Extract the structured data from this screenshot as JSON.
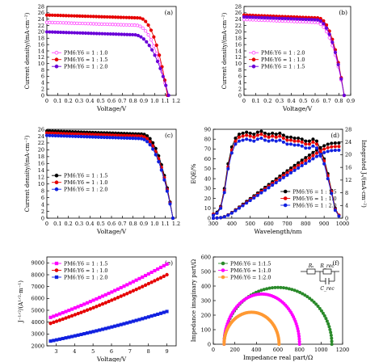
{
  "figure": {
    "title": ""
  },
  "chart_data": [
    {
      "id": "a",
      "type": "line",
      "panel_label": "(a)",
      "xlabel": "Voltage/V",
      "ylabel": "Current density/(mA·cm⁻²)",
      "xlim": [
        0,
        1.2
      ],
      "ylim": [
        0,
        28
      ],
      "xticks": [
        "0",
        "0.1",
        "0.2",
        "0.3",
        "0.4",
        "0.5",
        "0.6",
        "0.7",
        "0.8",
        "0.9",
        "1.0",
        "1.1",
        "1.2"
      ],
      "yticks": [
        "0",
        "2",
        "4",
        "6",
        "8",
        "10",
        "12",
        "14",
        "16",
        "18",
        "20",
        "22",
        "24",
        "26",
        "28"
      ],
      "legend": "left",
      "series": [
        {
          "name": "PM6:Y6 = 1 : 1.0",
          "color": "#ff44ff",
          "marker": "circle-open",
          "jsc": 23.0,
          "voc": 1.12,
          "knee": 0.82
        },
        {
          "name": "PM6:Y6 = 1 : 1.5",
          "color": "#e60000",
          "marker": "circle",
          "jsc": 25.3,
          "voc": 1.12,
          "knee": 0.85
        },
        {
          "name": "PM6:Y6 = 1 : 2.0",
          "color": "#6a00d8",
          "marker": "circle",
          "jsc": 20.0,
          "voc": 1.13,
          "knee": 0.8
        }
      ]
    },
    {
      "id": "b",
      "type": "line",
      "panel_label": "(b)",
      "xlabel": "Voltage/V",
      "ylabel": "Current density/(mA·cm⁻²)",
      "xlim": [
        0,
        0.9
      ],
      "ylim": [
        0,
        28
      ],
      "xticks": [
        "0",
        "0.1",
        "0.2",
        "0.3",
        "0.4",
        "0.5",
        "0.6",
        "0.7",
        "0.8",
        "0.9"
      ],
      "yticks": [
        "0",
        "2",
        "4",
        "6",
        "8",
        "10",
        "12",
        "14",
        "16",
        "18",
        "20",
        "22",
        "24",
        "26",
        "28"
      ],
      "legend": "left",
      "series": [
        {
          "name": "PM6:Y6 = 1 : 2.0",
          "color": "#ff44ff",
          "marker": "circle-open",
          "jsc": 23.9,
          "voc": 0.845,
          "knee": 0.6
        },
        {
          "name": "PM6:Y6 = 1 : 1.0",
          "color": "#e60000",
          "marker": "circle",
          "jsc": 25.3,
          "voc": 0.845,
          "knee": 0.62
        },
        {
          "name": "PM6:Y6 = 1 : 1.5",
          "color": "#6a00d8",
          "marker": "circle",
          "jsc": 24.7,
          "voc": 0.845,
          "knee": 0.61
        }
      ]
    },
    {
      "id": "c",
      "type": "line",
      "panel_label": "(c)",
      "xlabel": "Voltage/V",
      "ylabel": "Current density/(mA·cm⁻²)",
      "xlim": [
        0,
        1.2
      ],
      "ylim": [
        0,
        26
      ],
      "xticks": [
        "0",
        "0.1",
        "0.2",
        "0.3",
        "0.4",
        "0.5",
        "0.6",
        "0.7",
        "0.8",
        "0.9",
        "1.0",
        "1.1",
        "1.2"
      ],
      "yticks": [
        "0",
        "2",
        "4",
        "6",
        "8",
        "10",
        "12",
        "14",
        "16",
        "18",
        "20",
        "22",
        "24",
        "26"
      ],
      "legend": "left",
      "series": [
        {
          "name": "PM6:Y6 = 1 : 1.5",
          "color": "#000000",
          "marker": "circle",
          "jsc": 25.5,
          "voc": 1.17,
          "knee": 0.88
        },
        {
          "name": "PM6:Y6 = 1 : 1.0",
          "color": "#e60000",
          "marker": "circle",
          "jsc": 24.9,
          "voc": 1.17,
          "knee": 0.87
        },
        {
          "name": "PM6:Y6 = 1 : 2.0",
          "color": "#1020e0",
          "marker": "circle",
          "jsc": 24.2,
          "voc": 1.17,
          "knee": 0.86
        }
      ]
    },
    {
      "id": "d",
      "type": "line",
      "panel_label": "(d)",
      "xlabel": "Wavelength/nm",
      "ylabel": "EQE/%",
      "ylabel_right": "Integrated Jₛ/(mA·cm⁻²)",
      "xlim": [
        300,
        1000
      ],
      "ylim": [
        0,
        90
      ],
      "ylim_right": [
        0,
        28
      ],
      "xticks": [
        "300",
        "400",
        "500",
        "600",
        "700",
        "800",
        "900",
        "1000"
      ],
      "yticks": [
        "0",
        "10",
        "20",
        "30",
        "40",
        "50",
        "60",
        "70",
        "80",
        "90"
      ],
      "yticks_right": [
        "0",
        "4",
        "8",
        "12",
        "16",
        "20",
        "24",
        "28"
      ],
      "legend": "bottom-right",
      "eqe_x": [
        300,
        320,
        340,
        360,
        380,
        400,
        420,
        440,
        460,
        480,
        500,
        520,
        540,
        560,
        580,
        600,
        620,
        640,
        660,
        680,
        700,
        720,
        740,
        760,
        780,
        800,
        820,
        840,
        860,
        880,
        900,
        920,
        940,
        960,
        980
      ],
      "series": [
        {
          "name": "PM6:Y6 = 1 : 1.5",
          "color": "#000000",
          "eqe": [
            4,
            6,
            12,
            30,
            55,
            72,
            81,
            85,
            86,
            87,
            86,
            85,
            87,
            88,
            86,
            85,
            86,
            85,
            86,
            84,
            82,
            82,
            81,
            81,
            80,
            78,
            78,
            80,
            78,
            70,
            60,
            45,
            28,
            10,
            3
          ],
          "jint": 23.7
        },
        {
          "name": "PM6:Y6 = 1 : 1.0",
          "color": "#e60000",
          "eqe": [
            4,
            5,
            11,
            28,
            52,
            69,
            78,
            82,
            83,
            84,
            83,
            82,
            84,
            85,
            83,
            82,
            83,
            82,
            83,
            81,
            79,
            79,
            78,
            78,
            77,
            75,
            75,
            77,
            75,
            67,
            58,
            43,
            27,
            9,
            3
          ],
          "jint": 22.6
        },
        {
          "name": "PM6:Y6 = 1 : 2.0",
          "color": "#1020e0",
          "eqe": [
            3,
            5,
            10,
            26,
            50,
            66,
            75,
            78,
            79,
            80,
            79,
            78,
            80,
            81,
            79,
            78,
            79,
            78,
            79,
            77,
            75,
            75,
            74,
            74,
            73,
            71,
            71,
            73,
            71,
            63,
            55,
            40,
            25,
            8,
            2
          ],
          "jint": 21.4
        }
      ]
    },
    {
      "id": "e",
      "type": "scatter",
      "panel_label": "(e)",
      "xlabel": "Voltage/V",
      "ylabel": "J⁻¹ᐟ²/(A¹ᐟ²·m⁻¹)",
      "xlim": [
        2.5,
        9.5
      ],
      "ylim": [
        2000,
        9500
      ],
      "xticks": [
        "3",
        "4",
        "5",
        "6",
        "7",
        "8",
        "9"
      ],
      "yticks": [
        "2000",
        "3000",
        "4000",
        "5000",
        "6000",
        "7000",
        "8000",
        "9000"
      ],
      "legend": "top-left",
      "series": [
        {
          "name": "PM6:Y6 = 1 : 1.5",
          "color": "#ff00ff",
          "marker": "square",
          "x0": 2.7,
          "x1": 9.0,
          "y0": 4400,
          "y1": 8900
        },
        {
          "name": "PM6:Y6 = 1 : 1.0",
          "color": "#e60000",
          "marker": "circle",
          "x0": 2.7,
          "x1": 9.0,
          "y0": 3900,
          "y1": 8000
        },
        {
          "name": "PM6:Y6 = 1 : 2.0",
          "color": "#1020e0",
          "marker": "square",
          "x0": 2.7,
          "x1": 9.0,
          "y0": 2400,
          "y1": 4900
        }
      ]
    },
    {
      "id": "f",
      "type": "scatter",
      "panel_label": "(f)",
      "xlabel": "Impedance real part/Ω",
      "ylabel": "Impedance imaginary part/Ω",
      "xlim": [
        0,
        1200
      ],
      "ylim": [
        0,
        600
      ],
      "xticks": [
        "0",
        "200",
        "400",
        "600",
        "800",
        "1000",
        "1200"
      ],
      "yticks": [
        "0",
        "100",
        "200",
        "300",
        "400",
        "500",
        "600"
      ],
      "legend": "top-left",
      "circuit_labels": {
        "rs": "Rₛ",
        "rrec": "R_rec",
        "crec": "C_rec"
      },
      "series": [
        {
          "name": "PM6:Y6 = 1:1.5",
          "color": "#2a8a2a",
          "marker": "circle",
          "rs": 100,
          "rtot": 1100,
          "height": 390
        },
        {
          "name": "PM6:Y6 = 1:1.0",
          "color": "#ff00ff",
          "marker": "circle",
          "rs": 100,
          "rtot": 800,
          "height": 345
        },
        {
          "name": "PM6:Y6 = 1:2.0",
          "color": "#ff9933",
          "marker": "circle",
          "rs": 100,
          "rtot": 610,
          "height": 220
        }
      ]
    }
  ]
}
